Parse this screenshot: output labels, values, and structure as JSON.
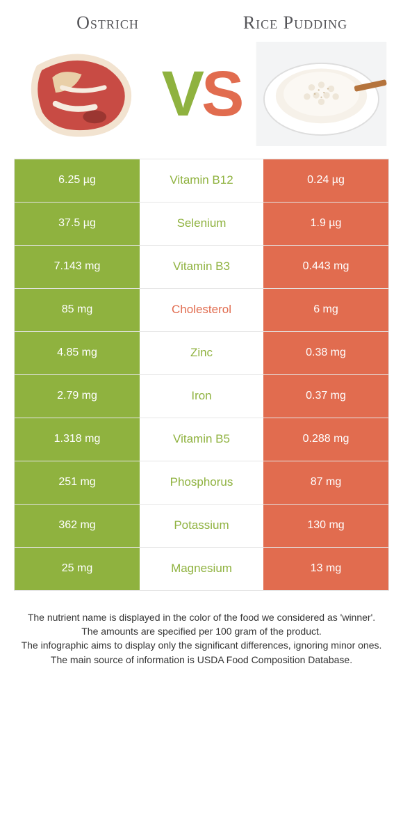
{
  "colors": {
    "green": "#8fb23f",
    "orange": "#e16c4f",
    "border": "#e5e5e5",
    "text": "#333333"
  },
  "left": {
    "title": "Ostrich",
    "color": "green"
  },
  "right": {
    "title": "Rice Pudding",
    "color": "orange"
  },
  "vs": {
    "v": "V",
    "s": "S"
  },
  "rows": [
    {
      "label": "Vitamin B12",
      "left": "6.25 µg",
      "right": "0.24 µg",
      "winner": "left"
    },
    {
      "label": "Selenium",
      "left": "37.5 µg",
      "right": "1.9 µg",
      "winner": "left"
    },
    {
      "label": "Vitamin B3",
      "left": "7.143 mg",
      "right": "0.443 mg",
      "winner": "left"
    },
    {
      "label": "Cholesterol",
      "left": "85 mg",
      "right": "6 mg",
      "winner": "right"
    },
    {
      "label": "Zinc",
      "left": "4.85 mg",
      "right": "0.38 mg",
      "winner": "left"
    },
    {
      "label": "Iron",
      "left": "2.79 mg",
      "right": "0.37 mg",
      "winner": "left"
    },
    {
      "label": "Vitamin B5",
      "left": "1.318 mg",
      "right": "0.288 mg",
      "winner": "left"
    },
    {
      "label": "Phosphorus",
      "left": "251 mg",
      "right": "87 mg",
      "winner": "left"
    },
    {
      "label": "Potassium",
      "left": "362 mg",
      "right": "130 mg",
      "winner": "left"
    },
    {
      "label": "Magnesium",
      "left": "25 mg",
      "right": "13 mg",
      "winner": "left"
    }
  ],
  "footer": {
    "l1": "The nutrient name is displayed in the color of the food we considered as 'winner'.",
    "l2": "The amounts are specified per 100 gram of the product.",
    "l3": "The infographic aims to display only the significant differences, ignoring minor ones.",
    "l4": "The main source of information is USDA Food Composition Database."
  }
}
